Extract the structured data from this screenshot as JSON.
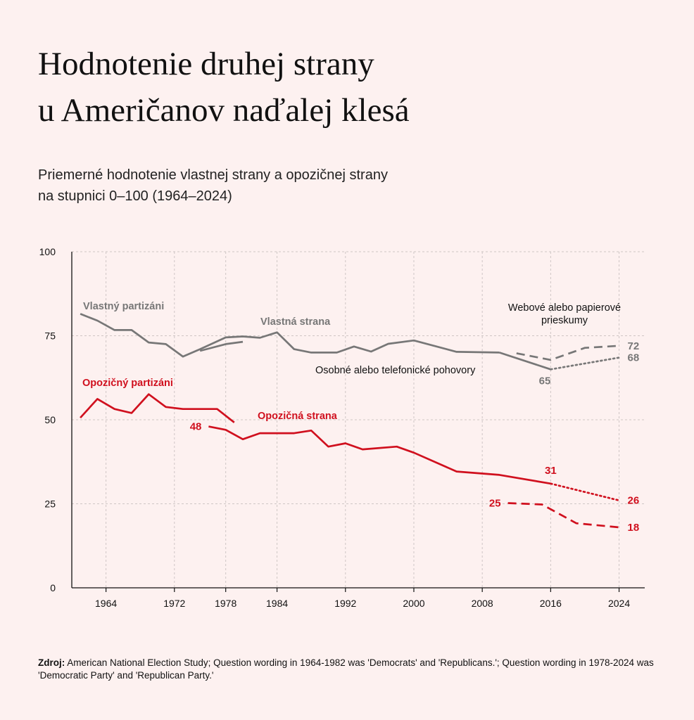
{
  "title_line1": "Hodnotenie druhej strany",
  "title_line2": "u Američanov naďalej klesá",
  "subtitle_line1": "Priemerné hodnotenie vlastnej strany a opozičnej strany",
  "subtitle_line2": "na stupnici 0–100 (1964–2024)",
  "source_label": "Zdroj:",
  "source_text": "American National Election Study; Question wording in 1964-1982 was 'Democrats' and 'Republicans.'; Question wording in 1978-2024 was 'Democratic Party' and 'Republican Party.'",
  "colors": {
    "own": "#777777",
    "opposing": "#d0101e",
    "grid": "#cfc6c5",
    "axis": "#111111"
  },
  "chart_data": {
    "type": "line",
    "title": "Hodnotenie druhej strany u Američanov naďalej klesá",
    "subtitle": "Priemerné hodnotenie vlastnej strany a opozičnej strany na stupnici 0–100 (1964–2024)",
    "xlabel": "",
    "ylabel": "",
    "xlim": [
      1960,
      2027
    ],
    "ylim": [
      0,
      100
    ],
    "x_ticks": [
      1964,
      1972,
      1978,
      1984,
      1992,
      2000,
      2008,
      2016,
      2024
    ],
    "y_ticks": [
      0,
      25,
      50,
      75,
      100
    ],
    "grid": true,
    "series": [
      {
        "name": "Vlastný partizáni",
        "group": "own",
        "style": "solid",
        "points": [
          [
            1961,
            81.5
          ],
          [
            1963,
            79.5
          ],
          [
            1965,
            76.7
          ],
          [
            1967,
            76.7
          ],
          [
            1969,
            73
          ],
          [
            1971,
            72.5
          ],
          [
            1973,
            68.8
          ],
          [
            1975,
            71
          ],
          [
            1978,
            74.5
          ],
          [
            1980,
            74.8
          ],
          [
            1982,
            74.4
          ],
          [
            1984,
            76
          ],
          [
            1986,
            71
          ],
          [
            1988,
            70
          ],
          [
            1991,
            70
          ],
          [
            1993,
            71.8
          ],
          [
            1995,
            70.3
          ],
          [
            1997,
            72.6
          ],
          [
            2000,
            73.6
          ],
          [
            2005,
            70.2
          ],
          [
            2010,
            70
          ]
        ]
      },
      {
        "name": "Vlastná strana",
        "group": "own",
        "style": "solid",
        "points": [
          [
            1975,
            70.5
          ],
          [
            1978,
            72.5
          ],
          [
            1980,
            73.2
          ]
        ]
      },
      {
        "name": "Osobné alebo telefonické pohovory",
        "group": "own",
        "style": "solid",
        "points": [
          [
            2010,
            70
          ],
          [
            2016,
            65
          ]
        ]
      },
      {
        "name": "Webové alebo papierové prieskumy",
        "group": "own",
        "style": "dashed",
        "points": [
          [
            2012,
            69.8
          ],
          [
            2016,
            67.8
          ],
          [
            2020,
            71.4
          ],
          [
            2024,
            72
          ]
        ]
      },
      {
        "name": "",
        "group": "own",
        "style": "dotted",
        "points": [
          [
            2016,
            65
          ],
          [
            2024,
            68.5
          ]
        ]
      },
      {
        "name": "Opozičný partizáni",
        "group": "opposing",
        "style": "solid",
        "points": [
          [
            1961,
            50.6
          ],
          [
            1963,
            56.2
          ],
          [
            1965,
            53.2
          ],
          [
            1967,
            52
          ],
          [
            1969,
            57.6
          ],
          [
            1971,
            53.8
          ],
          [
            1973,
            53.2
          ],
          [
            1975,
            53.2
          ],
          [
            1977,
            53.2
          ],
          [
            1979,
            49.2
          ]
        ]
      },
      {
        "name": "Opozičná strana",
        "group": "opposing",
        "style": "solid",
        "points": [
          [
            1976,
            48
          ],
          [
            1978,
            47
          ],
          [
            1980,
            44.2
          ],
          [
            1982,
            46
          ],
          [
            1984,
            46
          ],
          [
            1986,
            46
          ],
          [
            1988,
            46.8
          ],
          [
            1990,
            42
          ],
          [
            1992,
            43
          ],
          [
            1994,
            41.2
          ],
          [
            1998,
            42
          ],
          [
            2000,
            40.2
          ],
          [
            2005,
            34.6
          ],
          [
            2010,
            33.6
          ],
          [
            2016,
            31
          ]
        ]
      },
      {
        "name": "",
        "group": "opposing",
        "style": "dashed",
        "points": [
          [
            2011,
            25.2
          ],
          [
            2015,
            24.8
          ],
          [
            2019,
            19.2
          ],
          [
            2024,
            18
          ]
        ]
      },
      {
        "name": "",
        "group": "opposing",
        "style": "dotted",
        "points": [
          [
            2016,
            31
          ],
          [
            2024,
            26
          ]
        ]
      }
    ],
    "data_labels": [
      {
        "text": "72",
        "x": 2024,
        "y": 72,
        "group": "own"
      },
      {
        "text": "68",
        "x": 2024,
        "y": 68.5,
        "group": "own"
      },
      {
        "text": "65",
        "x": 2016,
        "y": 65,
        "group": "own"
      },
      {
        "text": "48",
        "x": 1976,
        "y": 48,
        "group": "opposing"
      },
      {
        "text": "31",
        "x": 2016,
        "y": 31,
        "group": "opposing"
      },
      {
        "text": "25",
        "x": 2011,
        "y": 25.2,
        "group": "opposing"
      },
      {
        "text": "26",
        "x": 2024,
        "y": 26,
        "group": "opposing"
      },
      {
        "text": "18",
        "x": 2024,
        "y": 18,
        "group": "opposing"
      }
    ],
    "annotations": [
      {
        "text": "Vlastný partizáni",
        "group": "own",
        "bold": true
      },
      {
        "text": "Vlastná strana",
        "group": "own",
        "bold": true
      },
      {
        "text": "Webové alebo papierové",
        "group": "note",
        "bold": false
      },
      {
        "text": "prieskumy",
        "group": "note",
        "bold": false
      },
      {
        "text": "Osobné alebo telefonické pohovory",
        "group": "note",
        "bold": false
      },
      {
        "text": "Opozičný partizáni",
        "group": "opposing",
        "bold": true
      },
      {
        "text": "Opozičná strana",
        "group": "opposing",
        "bold": true
      }
    ]
  }
}
